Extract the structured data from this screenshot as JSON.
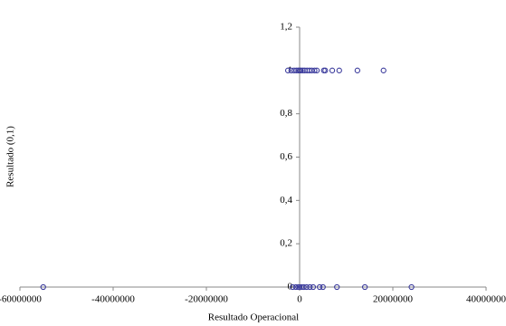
{
  "chart_data": {
    "type": "scatter",
    "x_label": "Resultado Operacional",
    "y_label": "Resultado (0,1)",
    "xlim": [
      -60000000,
      40000000
    ],
    "xticks": [
      -60000000,
      -40000000,
      -20000000,
      0,
      20000000,
      40000000
    ],
    "ylim": [
      0,
      1.2
    ],
    "yticks": [
      0,
      {
        "value": 0.2,
        "label": "0,2"
      },
      {
        "value": 0.4,
        "label": "0,4"
      },
      {
        "value": 0.6,
        "label": "0,6"
      },
      {
        "value": 0.8,
        "label": "0,8"
      },
      1,
      {
        "value": 1.2,
        "label": "1,2"
      }
    ],
    "grid": false,
    "series": [
      {
        "color": "#3b3b9c",
        "x": [
          -2500000,
          -1800000,
          -1200000,
          -700000,
          -300000,
          0,
          300000,
          700000,
          1100000,
          1600000,
          2100000,
          2600000,
          3200000,
          3700000,
          5200000,
          5500000,
          7000000,
          8500000,
          12400000,
          18000000,
          -55000000,
          -1500000,
          -800000,
          -300000,
          0,
          400000,
          900000,
          1500000,
          2200000,
          2900000,
          4300000,
          5000000,
          8000000,
          14000000,
          24000000
        ],
        "values": [
          1,
          1,
          1,
          1,
          1,
          1,
          1,
          1,
          1,
          1,
          1,
          1,
          1,
          1,
          1,
          1,
          1,
          1,
          1,
          1,
          0,
          0,
          0,
          0,
          0,
          0,
          0,
          0,
          0,
          0,
          0,
          0,
          0,
          0,
          0
        ]
      }
    ]
  }
}
